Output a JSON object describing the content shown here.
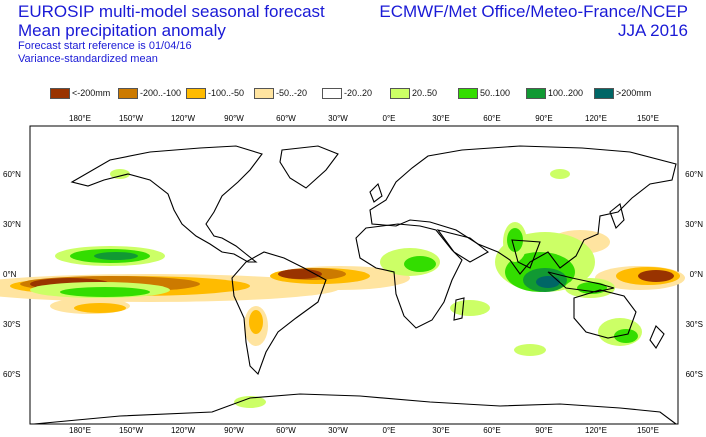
{
  "header": {
    "title_line1": "EUROSIP multi-model seasonal forecast",
    "title_line2": "Mean precipitation anomaly",
    "subtitle_line1": "Forecast start reference is 01/04/16",
    "subtitle_line2": "Variance-standardized mean",
    "centres": "ECMWF/Met Office/Meteo-France/NCEP",
    "season": "JJA 2016"
  },
  "legend": [
    {
      "label": "<-200mm",
      "color": "#993300"
    },
    {
      "label": "-200..-100",
      "color": "#cc7a00"
    },
    {
      "label": "-100..-50",
      "color": "#ffbb00"
    },
    {
      "label": "-50..-20",
      "color": "#ffe4a0"
    },
    {
      "label": "-20..20",
      "color": "#ffffff"
    },
    {
      "label": "20..50",
      "color": "#ccff66"
    },
    {
      "label": "50..100",
      "color": "#33dd00"
    },
    {
      "label": "100..200",
      "color": "#119933"
    },
    {
      "label": ">200mm",
      "color": "#006666"
    }
  ],
  "axes": {
    "lon_labels": [
      "180°E",
      "150°W",
      "120°W",
      "90°W",
      "60°W",
      "30°W",
      "0°E",
      "30°E",
      "60°E",
      "90°E",
      "120°E",
      "150°E"
    ],
    "lat_labels": [
      "60°N",
      "30°N",
      "0°N",
      "30°S",
      "60°S"
    ]
  }
}
